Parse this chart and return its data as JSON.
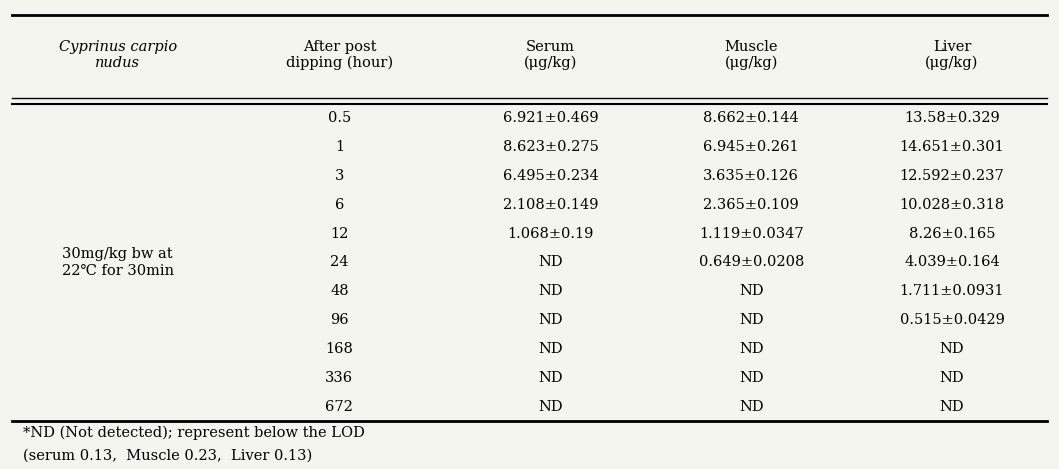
{
  "col_headers": [
    "Cyprinus carpio\nnudus",
    "After post\ndipping (hour)",
    "Serum\n(μg/kg)",
    "Muscle\n(μg/kg)",
    "Liver\n(μg/kg)"
  ],
  "row_label": "30mg/kg bw at\n22℃ for 30min",
  "time_points": [
    "0.5",
    "1",
    "3",
    "6",
    "12",
    "24",
    "48",
    "96",
    "168",
    "336",
    "672"
  ],
  "serum": [
    "6.921±0.469",
    "8.623±0.275",
    "6.495±0.234",
    "2.108±0.149",
    "1.068±0.19",
    "ND",
    "ND",
    "ND",
    "ND",
    "ND",
    "ND"
  ],
  "muscle": [
    "8.662±0.144",
    "6.945±0.261",
    "3.635±0.126",
    "2.365±0.109",
    "1.119±0.0347",
    "0.649±0.0208",
    "ND",
    "ND",
    "ND",
    "ND",
    "ND"
  ],
  "liver": [
    "13.58±0.329",
    "14.651±0.301",
    "12.592±0.237",
    "10.028±0.318",
    "8.26±0.165",
    "4.039±0.164",
    "1.711±0.0931",
    "0.515±0.0429",
    "ND",
    "ND",
    "ND"
  ],
  "footnote1": "*ND (Not detected); represent below the LOD",
  "footnote2": "(serum 0.13,  Muscle 0.23,  Liver 0.13)",
  "bg_color": "#f5f5ef",
  "text_color": "#000000",
  "header_italic_col0": true,
  "font_size": 10.5,
  "header_font_size": 10.5
}
